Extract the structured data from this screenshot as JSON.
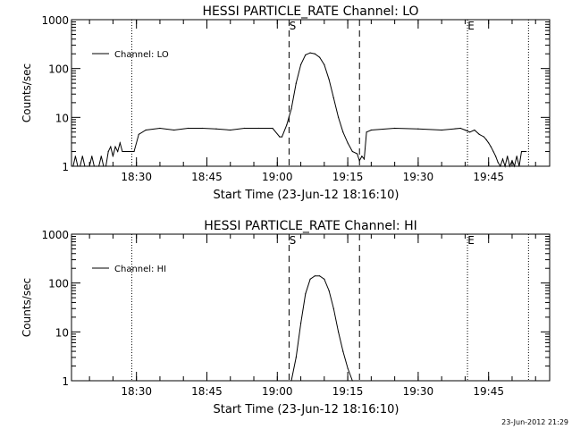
{
  "footer_timestamp": "23-Jun-2012 21:29",
  "chart_data": [
    {
      "type": "line",
      "title": "HESSI PARTICLE_RATE Channel: LO",
      "xlabel": "Start Time (23-Jun-12 18:16:10)",
      "ylabel": "Counts/sec",
      "y_scale": "log",
      "ylim": [
        1,
        1000
      ],
      "yticks": [
        "1",
        "10",
        "100",
        "1000"
      ],
      "xlim": [
        "18:16:10",
        "19:58:00"
      ],
      "xticks": [
        "18:30",
        "18:45",
        "19:00",
        "19:15",
        "19:30",
        "19:45"
      ],
      "legend": "top-left",
      "series": [
        {
          "name": "Channel: LO",
          "x": [
            "18:16:30",
            "18:17:00",
            "18:17:30",
            "18:18:00",
            "18:18:30",
            "18:19:00",
            "18:19:30",
            "18:20:00",
            "18:20:30",
            "18:21:00",
            "18:21:30",
            "18:22:00",
            "18:22:30",
            "18:23:00",
            "18:23:30",
            "18:24:00",
            "18:24:30",
            "18:25:00",
            "18:25:30",
            "18:26:00",
            "18:26:30",
            "18:27:00",
            "18:27:30",
            "18:28:00",
            "18:28:30",
            "18:29:00",
            "18:29:30",
            "18:30:30",
            "18:32:00",
            "18:35:00",
            "18:38:00",
            "18:41:00",
            "18:44:00",
            "18:47:00",
            "18:50:00",
            "18:53:00",
            "18:56:00",
            "18:59:00",
            "19:00:30",
            "19:01:00",
            "19:02:00",
            "19:03:00",
            "19:04:00",
            "19:05:00",
            "19:06:00",
            "19:07:00",
            "19:08:00",
            "19:09:00",
            "19:10:00",
            "19:11:00",
            "19:12:00",
            "19:13:00",
            "19:14:00",
            "19:15:00",
            "19:16:00",
            "19:17:00",
            "19:17:30",
            "19:18:00",
            "19:18:30",
            "19:19:00",
            "19:20:00",
            "19:25:00",
            "19:30:00",
            "19:35:00",
            "19:39:00",
            "19:40:00",
            "19:41:00",
            "19:42:00",
            "19:43:00",
            "19:44:00",
            "19:44:30",
            "19:45:00",
            "19:45:30",
            "19:46:00",
            "19:46:30",
            "19:47:00",
            "19:47:30",
            "19:48:00",
            "19:48:30",
            "19:49:00",
            "19:49:30",
            "19:50:00",
            "19:50:30",
            "19:51:00",
            "19:51:30",
            "19:52:00",
            "19:53:00"
          ],
          "y": [
            1,
            1.6,
            1,
            1,
            1.6,
            1,
            1,
            1,
            1.6,
            1,
            1,
            1,
            1.6,
            1,
            1,
            2,
            2.5,
            1.6,
            2.5,
            2,
            3,
            2,
            2,
            2,
            2,
            2,
            2,
            4.5,
            5.5,
            6,
            5.5,
            6,
            6,
            5.8,
            5.5,
            6,
            6,
            6,
            4,
            4,
            7,
            15,
            50,
            120,
            190,
            210,
            200,
            170,
            120,
            60,
            25,
            10,
            5,
            3,
            2,
            1.8,
            1.3,
            1.6,
            1.4,
            5,
            5.5,
            6,
            5.8,
            5.5,
            6,
            5.5,
            5,
            5.5,
            4.5,
            4,
            3.5,
            3,
            2.5,
            2,
            1.6,
            1.2,
            1,
            1.4,
            1,
            1.6,
            1,
            1.3,
            1,
            1.6,
            1,
            2,
            2
          ]
        }
      ],
      "markers": [
        {
          "label": "S",
          "x": "19:02:30",
          "style": "dashed"
        },
        {
          "label": "E",
          "x": "19:40:30",
          "style": "dotted"
        }
      ],
      "vlines": [
        {
          "x": "18:29:00",
          "style": "dotted"
        },
        {
          "x": "19:17:30",
          "style": "dashed"
        },
        {
          "x": "19:53:30",
          "style": "dotted"
        }
      ]
    },
    {
      "type": "line",
      "title": "HESSI PARTICLE_RATE Channel: HI",
      "xlabel": "Start Time (23-Jun-12 18:16:10)",
      "ylabel": "Counts/sec",
      "y_scale": "log",
      "ylim": [
        1,
        1000
      ],
      "yticks": [
        "1",
        "10",
        "100",
        "1000"
      ],
      "xlim": [
        "18:16:10",
        "19:58:00"
      ],
      "xticks": [
        "18:30",
        "18:45",
        "19:00",
        "19:15",
        "19:30",
        "19:45"
      ],
      "legend": "top-left",
      "series": [
        {
          "name": "Channel: HI",
          "x": [
            "19:03:00",
            "19:04:00",
            "19:05:00",
            "19:06:00",
            "19:07:00",
            "19:08:00",
            "19:09:00",
            "19:10:00",
            "19:11:00",
            "19:12:00",
            "19:13:00",
            "19:14:00",
            "19:15:00",
            "19:16:00"
          ],
          "y": [
            1,
            3,
            15,
            60,
            120,
            140,
            140,
            120,
            70,
            30,
            10,
            4,
            1.8,
            1
          ]
        }
      ],
      "markers": [
        {
          "label": "S",
          "x": "19:02:30",
          "style": "dashed"
        },
        {
          "label": "E",
          "x": "19:40:30",
          "style": "dotted"
        }
      ],
      "vlines": [
        {
          "x": "18:29:00",
          "style": "dotted"
        },
        {
          "x": "19:17:30",
          "style": "dashed"
        },
        {
          "x": "19:53:30",
          "style": "dotted"
        }
      ]
    }
  ]
}
